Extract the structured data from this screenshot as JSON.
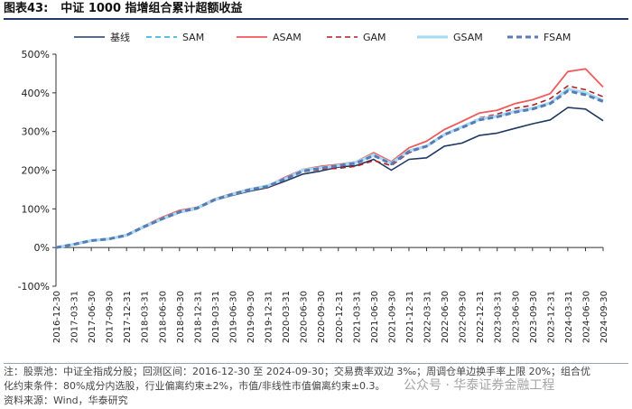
{
  "header": {
    "figure_number": "图表43:",
    "title": "中证 1000 指增组合累计超额收益"
  },
  "notes": {
    "line1": "注：股票池：中证全指成分股；回测区间：2016-12-30 至 2024-09-30；交易费率双边 3‰；周调仓单边换手率上限 20%；组合优",
    "line2": "化约束条件：80%成分内选股，行业偏离约束±2%，市值/非线性市值偏离约束±0.3。",
    "line3": "资料来源：Wind，华泰研究"
  },
  "watermark": "公众号 · 华泰证券金融工程",
  "chart_data": {
    "type": "line",
    "title": "中证 1000 指增组合累计超额收益",
    "ylim": [
      -100,
      500
    ],
    "yticks": [
      -100,
      0,
      100,
      200,
      300,
      400,
      500
    ],
    "ytick_labels": [
      "-100%",
      "0%",
      "100%",
      "200%",
      "300%",
      "400%",
      "500%"
    ],
    "grid": false,
    "legend_position": "top",
    "x_start": "2016-12-30",
    "x_end": "2024-09-30",
    "xtick_labels": [
      "2016-12-30",
      "2017-03-31",
      "2017-06-30",
      "2017-09-30",
      "2017-12-31",
      "2018-03-31",
      "2018-06-30",
      "2018-09-30",
      "2018-12-31",
      "2019-03-31",
      "2019-06-30",
      "2019-09-30",
      "2019-12-31",
      "2020-03-31",
      "2020-06-30",
      "2020-09-30",
      "2020-12-31",
      "2021-03-31",
      "2021-06-30",
      "2021-09-30",
      "2021-12-31",
      "2022-03-31",
      "2022-06-30",
      "2022-09-30",
      "2022-12-31",
      "2023-03-31",
      "2023-06-30",
      "2023-09-30",
      "2023-12-31",
      "2024-03-31",
      "2024-06-30",
      "2024-09-30"
    ],
    "x": [
      "2016-12-30",
      "2017-03-31",
      "2017-06-30",
      "2017-09-30",
      "2017-12-31",
      "2018-03-31",
      "2018-06-30",
      "2018-09-30",
      "2018-12-31",
      "2019-03-31",
      "2019-06-30",
      "2019-09-30",
      "2019-12-31",
      "2020-03-31",
      "2020-06-30",
      "2020-09-30",
      "2020-12-31",
      "2021-03-31",
      "2021-06-30",
      "2021-09-30",
      "2021-12-31",
      "2022-03-31",
      "2022-06-30",
      "2022-09-30",
      "2022-12-31",
      "2023-03-31",
      "2023-06-30",
      "2023-09-30",
      "2023-12-31",
      "2024-03-31",
      "2024-06-30",
      "2024-09-30"
    ],
    "series": [
      {
        "name": "基线",
        "color": "#1f3864",
        "dash": "solid",
        "width": 1.6,
        "values": [
          0,
          8,
          18,
          22,
          32,
          52,
          72,
          90,
          100,
          122,
          135,
          146,
          155,
          172,
          190,
          198,
          208,
          212,
          228,
          200,
          228,
          232,
          262,
          270,
          290,
          296,
          308,
          320,
          330,
          362,
          358,
          328
        ]
      },
      {
        "name": "SAM",
        "color": "#29a8e0",
        "dash": "dash",
        "width": 1.4,
        "values": [
          0,
          8,
          18,
          22,
          32,
          54,
          74,
          92,
          102,
          124,
          138,
          150,
          158,
          178,
          198,
          205,
          212,
          218,
          238,
          215,
          248,
          262,
          292,
          310,
          330,
          338,
          350,
          358,
          372,
          405,
          395,
          375
        ]
      },
      {
        "name": "ASAM",
        "color": "#f05a5a",
        "dash": "solid",
        "width": 1.8,
        "values": [
          0,
          8,
          18,
          22,
          33,
          56,
          78,
          96,
          104,
          126,
          140,
          152,
          160,
          182,
          202,
          210,
          215,
          222,
          245,
          222,
          258,
          275,
          305,
          326,
          348,
          355,
          372,
          382,
          398,
          455,
          462,
          415
        ]
      },
      {
        "name": "GAM",
        "color": "#b11d1d",
        "dash": "dash",
        "width": 1.6,
        "values": [
          0,
          8,
          18,
          22,
          33,
          56,
          76,
          94,
          102,
          124,
          138,
          150,
          155,
          176,
          196,
          202,
          205,
          210,
          225,
          212,
          245,
          262,
          290,
          312,
          335,
          345,
          360,
          368,
          385,
          418,
          408,
          390
        ]
      },
      {
        "name": "GSAM",
        "color": "#a7dcf0",
        "dash": "solid",
        "width": 3.2,
        "values": [
          0,
          8,
          18,
          22,
          32,
          54,
          74,
          92,
          102,
          124,
          138,
          150,
          160,
          178,
          200,
          206,
          212,
          220,
          240,
          218,
          250,
          262,
          292,
          312,
          332,
          340,
          352,
          360,
          374,
          410,
          400,
          380
        ]
      },
      {
        "name": "FSAM",
        "color": "#5a7ab5",
        "dash": "dash",
        "width": 3.0,
        "values": [
          0,
          8,
          18,
          22,
          32,
          54,
          74,
          92,
          102,
          124,
          138,
          150,
          158,
          178,
          198,
          205,
          212,
          218,
          238,
          216,
          248,
          262,
          292,
          310,
          330,
          338,
          350,
          358,
          372,
          405,
          395,
          378
        ]
      }
    ]
  }
}
